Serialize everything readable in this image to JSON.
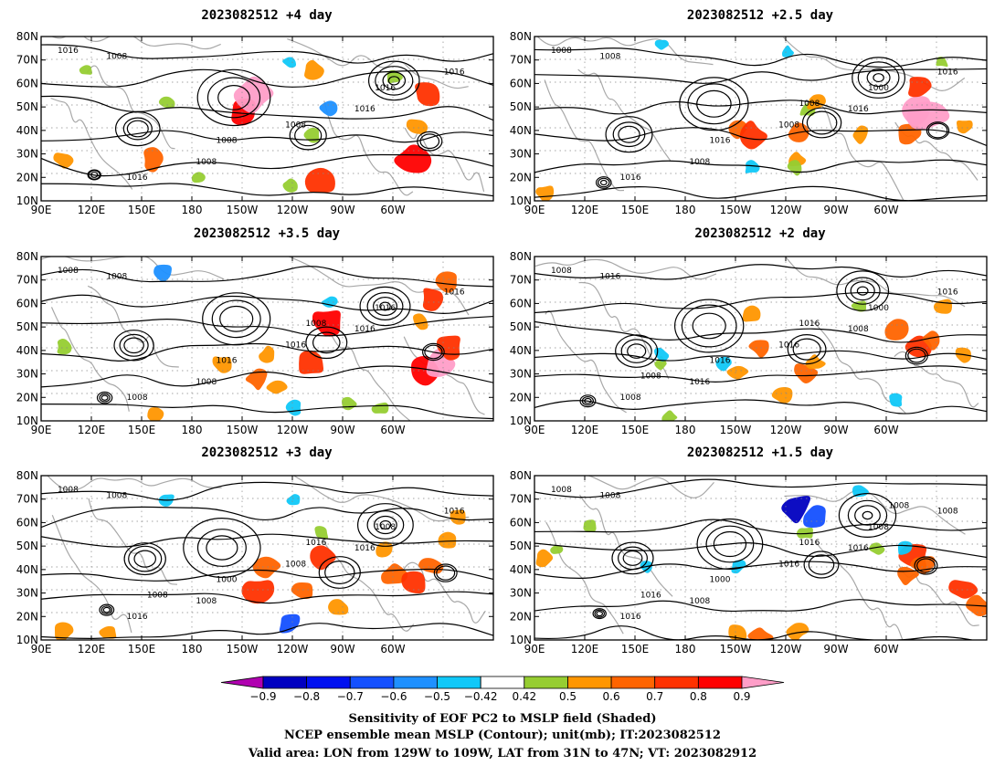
{
  "panels": [
    {
      "title": "2023082512  +4 day",
      "lines": [
        "1008",
        "1016",
        "1008",
        "1016",
        "1008",
        "1016",
        "1016",
        "1008",
        "1016"
      ],
      "blobs": [
        [
          5,
          0.75,
          2
        ],
        [
          10,
          0.2,
          1
        ],
        [
          25,
          0.75,
          3
        ],
        [
          55,
          0.15,
          -1
        ],
        [
          45,
          0.45,
          5
        ],
        [
          47,
          0.35,
          7
        ],
        [
          60,
          0.6,
          1
        ],
        [
          60,
          0.2,
          2
        ],
        [
          62,
          0.88,
          4
        ],
        [
          85,
          0.35,
          4
        ],
        [
          82,
          0.75,
          5
        ],
        [
          83,
          0.55,
          2
        ],
        [
          78,
          0.25,
          1
        ],
        [
          35,
          0.85,
          1
        ],
        [
          55,
          0.9,
          1
        ],
        [
          64,
          0.43,
          -2
        ],
        [
          28,
          0.4,
          1
        ]
      ]
    },
    {
      "title": "2023082512  +2.5 day",
      "lines": [
        "1008",
        "1016",
        "1008",
        "1016",
        "1008",
        "1016",
        "1000",
        "1016",
        "1008",
        "1008"
      ],
      "blobs": [
        [
          2,
          0.95,
          2
        ],
        [
          45,
          0.55,
          3
        ],
        [
          48,
          0.6,
          4
        ],
        [
          58,
          0.6,
          3
        ],
        [
          58,
          0.75,
          2
        ],
        [
          60,
          0.45,
          1
        ],
        [
          62,
          0.4,
          2
        ],
        [
          72,
          0.6,
          2
        ],
        [
          83,
          0.6,
          3
        ],
        [
          84,
          0.45,
          6
        ],
        [
          85,
          0.3,
          4
        ],
        [
          87,
          0.5,
          6
        ],
        [
          90,
          0.15,
          1
        ],
        [
          58,
          0.8,
          1
        ],
        [
          48,
          0.8,
          -1
        ],
        [
          28,
          0.05,
          -1
        ],
        [
          56,
          0.1,
          -1
        ],
        [
          95,
          0.55,
          2
        ]
      ]
    },
    {
      "title": "2023082512  +3.5 day",
      "lines": [
        "1008",
        "1016",
        "1008",
        "1016",
        "1016",
        "1008",
        "1016",
        "1016",
        "1008",
        "1008"
      ],
      "blobs": [
        [
          5,
          0.55,
          1
        ],
        [
          25,
          0.95,
          2
        ],
        [
          40,
          0.65,
          2
        ],
        [
          48,
          0.75,
          3
        ],
        [
          50,
          0.6,
          2
        ],
        [
          60,
          0.65,
          4
        ],
        [
          63,
          0.4,
          5
        ],
        [
          85,
          0.7,
          5
        ],
        [
          88,
          0.65,
          6
        ],
        [
          90,
          0.55,
          4
        ],
        [
          84,
          0.4,
          2
        ],
        [
          87,
          0.25,
          4
        ],
        [
          90,
          0.15,
          3
        ],
        [
          68,
          0.9,
          1
        ],
        [
          52,
          0.8,
          2
        ],
        [
          56,
          0.92,
          -1
        ],
        [
          27,
          0.1,
          -2
        ],
        [
          64,
          0.28,
          -1
        ],
        [
          75,
          0.92,
          1
        ]
      ]
    },
    {
      "title": "2023082512  +2 day",
      "lines": [
        "1016",
        "1008",
        "1016",
        "1016",
        "1016",
        "1008",
        "1000",
        "1016",
        "1008",
        "1016",
        "1008"
      ],
      "blobs": [
        [
          30,
          0.98,
          1
        ],
        [
          45,
          0.7,
          2
        ],
        [
          50,
          0.55,
          3
        ],
        [
          48,
          0.35,
          2
        ],
        [
          60,
          0.7,
          3
        ],
        [
          55,
          0.85,
          2
        ],
        [
          62,
          0.65,
          2
        ],
        [
          80,
          0.45,
          3
        ],
        [
          85,
          0.55,
          4
        ],
        [
          88,
          0.5,
          3
        ],
        [
          90,
          0.3,
          2
        ],
        [
          95,
          0.6,
          2
        ],
        [
          28,
          0.65,
          1
        ],
        [
          42,
          0.65,
          -1
        ],
        [
          80,
          0.88,
          -1
        ],
        [
          28,
          0.6,
          -1
        ],
        [
          72,
          0.3,
          1
        ]
      ]
    },
    {
      "title": "2023082512  +3 day",
      "lines": [
        "1008",
        "1016",
        "1008",
        "1016",
        "1008",
        "1016",
        "1008",
        "1000",
        "1008",
        "1016",
        "1008"
      ],
      "blobs": [
        [
          5,
          0.95,
          2
        ],
        [
          15,
          0.95,
          2
        ],
        [
          48,
          0.7,
          4
        ],
        [
          50,
          0.55,
          3
        ],
        [
          58,
          0.7,
          3
        ],
        [
          62,
          0.5,
          4
        ],
        [
          66,
          0.8,
          2
        ],
        [
          78,
          0.6,
          3
        ],
        [
          82,
          0.65,
          4
        ],
        [
          86,
          0.55,
          3
        ],
        [
          76,
          0.45,
          2
        ],
        [
          90,
          0.4,
          2
        ],
        [
          92,
          0.25,
          2
        ],
        [
          55,
          0.9,
          -3
        ],
        [
          28,
          0.15,
          -1
        ],
        [
          56,
          0.15,
          -1
        ],
        [
          62,
          0.35,
          1
        ]
      ]
    },
    {
      "title": "2023082512  +1.5 day",
      "lines": [
        "1008",
        "1016",
        "1008",
        "1008",
        "1016",
        "1016",
        "1008",
        "1000",
        "1008",
        "1016",
        "1016",
        "1008"
      ],
      "blobs": [
        [
          2,
          0.5,
          2
        ],
        [
          5,
          0.45,
          1
        ],
        [
          12,
          0.3,
          1
        ],
        [
          45,
          0.95,
          2
        ],
        [
          50,
          0.98,
          3
        ],
        [
          58,
          0.95,
          2
        ],
        [
          82,
          0.6,
          3
        ],
        [
          84,
          0.5,
          4
        ],
        [
          86,
          0.55,
          3
        ],
        [
          95,
          0.7,
          4
        ],
        [
          98,
          0.8,
          3
        ],
        [
          60,
          0.35,
          1
        ],
        [
          76,
          0.45,
          1
        ],
        [
          58,
          0.2,
          -5
        ],
        [
          62,
          0.25,
          -3
        ],
        [
          45,
          0.55,
          -1
        ],
        [
          25,
          0.55,
          -1
        ],
        [
          72,
          0.1,
          -1
        ],
        [
          82,
          0.45,
          -1
        ]
      ]
    }
  ],
  "axes": {
    "lat_ticks": [
      "80N",
      "70N",
      "60N",
      "50N",
      "40N",
      "30N",
      "20N",
      "10N"
    ],
    "lon_ticks": [
      "90E",
      "120E",
      "150E",
      "180",
      "150W",
      "120W",
      "90W",
      "60W"
    ]
  },
  "colorbar": {
    "labels": [
      "−0.9",
      "−0.8",
      "−0.7",
      "−0.6",
      "−0.5",
      "−0.42",
      "0.42",
      "0.5",
      "0.6",
      "0.7",
      "0.8",
      "0.9"
    ],
    "colors": [
      "#b000b0",
      "#0000c0",
      "#0010f0",
      "#1450ff",
      "#1e90ff",
      "#10c8f8",
      "#ffffff",
      "#96cd32",
      "#ff9600",
      "#ff6400",
      "#ff3200",
      "#ff0000",
      "#ff9ec8"
    ]
  },
  "captions": {
    "line1": "Sensitivity of EOF PC2 to MSLP field (Shaded)",
    "line2": "NCEP ensemble mean MSLP (Contour); unit(mb); IT:2023082512",
    "line3": "Valid area: LON from 129W to 109W, LAT from 31N to 47N; VT: 2023082912"
  }
}
